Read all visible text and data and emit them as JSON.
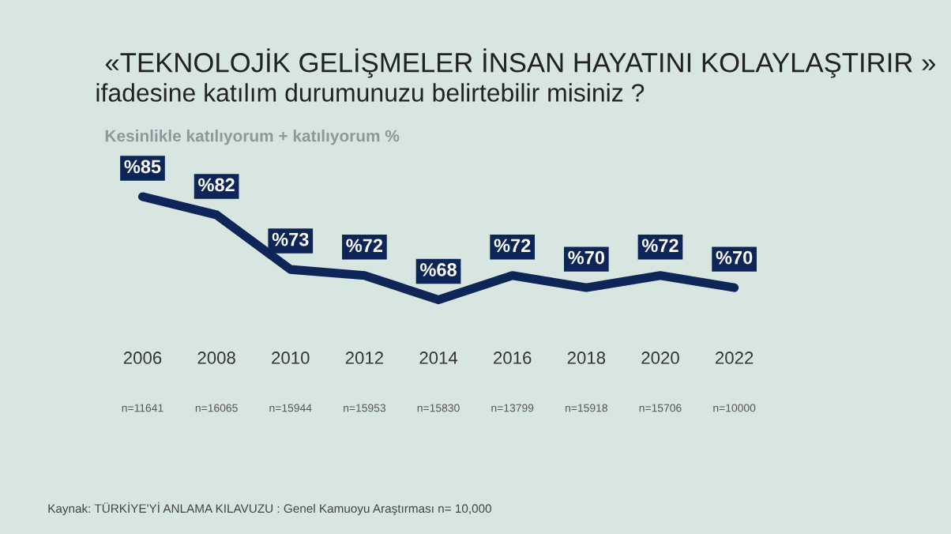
{
  "chart_data": {
    "type": "line",
    "title": "«TEKNOLOJİK GELİŞMELER İNSAN HAYATINI KOLAYLAŞTIRIR »",
    "subtitle": "ifadesine katılım durumunuzu belirtebilir misiniz ?",
    "ylabel": "Kesinlikle katılıyorum + katılıyorum %",
    "categories": [
      "2006",
      "2008",
      "2010",
      "2012",
      "2014",
      "2016",
      "2018",
      "2020",
      "2022"
    ],
    "series": [
      {
        "color": "#0e2557",
        "values": [
          85,
          82,
          73,
          72,
          68,
          72,
          70,
          72,
          70
        ],
        "value_labels": [
          "%85",
          "%82",
          "%73",
          "%72",
          "%68",
          "%72",
          "%70",
          "%72",
          "%70"
        ]
      }
    ],
    "annotations": [
      "n=11641",
      "n=16065",
      "n=15944",
      "n=15953",
      "n=15830",
      "n=13799",
      "n=15918",
      "n=15706",
      "n=10000",
      "Kaynak: TÜRKİYE'Yİ ANLAMA KILAVUZU : Genel Kamuoyu Araştırması n= 10,000"
    ],
    "relative": false,
    "marker": "none",
    "line_style": "solid",
    "grid": false,
    "legend": false
  }
}
